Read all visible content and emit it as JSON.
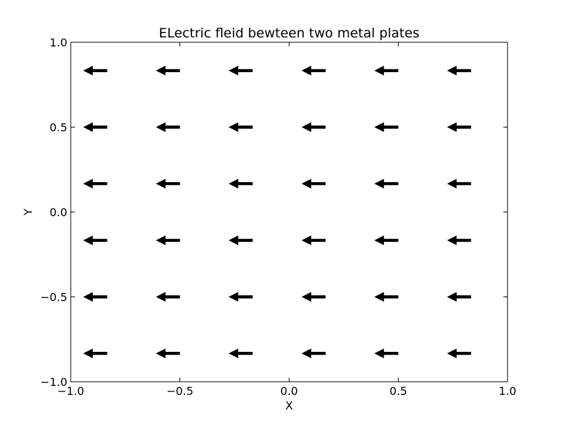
{
  "chart_data": {
    "type": "quiver",
    "title": "ELectric fleid bewteen two metal plates",
    "xlabel": "X",
    "ylabel": "Y",
    "xlim": [
      -1.0,
      1.0
    ],
    "ylim": [
      -1.0,
      1.0
    ],
    "grid": false,
    "x_ticks": [
      {
        "value": -1.0,
        "label": "−1.0"
      },
      {
        "value": -0.5,
        "label": "−0.5"
      },
      {
        "value": 0.0,
        "label": "0.0"
      },
      {
        "value": 0.5,
        "label": "0.5"
      },
      {
        "value": 1.0,
        "label": "1.0"
      }
    ],
    "y_ticks": [
      {
        "value": -1.0,
        "label": "−1.0"
      },
      {
        "value": -0.5,
        "label": "−0.5"
      },
      {
        "value": 0.0,
        "label": "0.0"
      },
      {
        "value": 0.5,
        "label": "0.5"
      },
      {
        "value": 1.0,
        "label": "1.0"
      }
    ],
    "grid_x": [
      -0.833,
      -0.5,
      -0.167,
      0.167,
      0.5,
      0.833
    ],
    "grid_y": [
      0.833,
      0.5,
      0.167,
      -0.167,
      -0.5,
      -0.833
    ],
    "vector": {
      "u": -1,
      "v": 0
    },
    "arrow_length": 0.11,
    "arrow_color": "#000000"
  }
}
